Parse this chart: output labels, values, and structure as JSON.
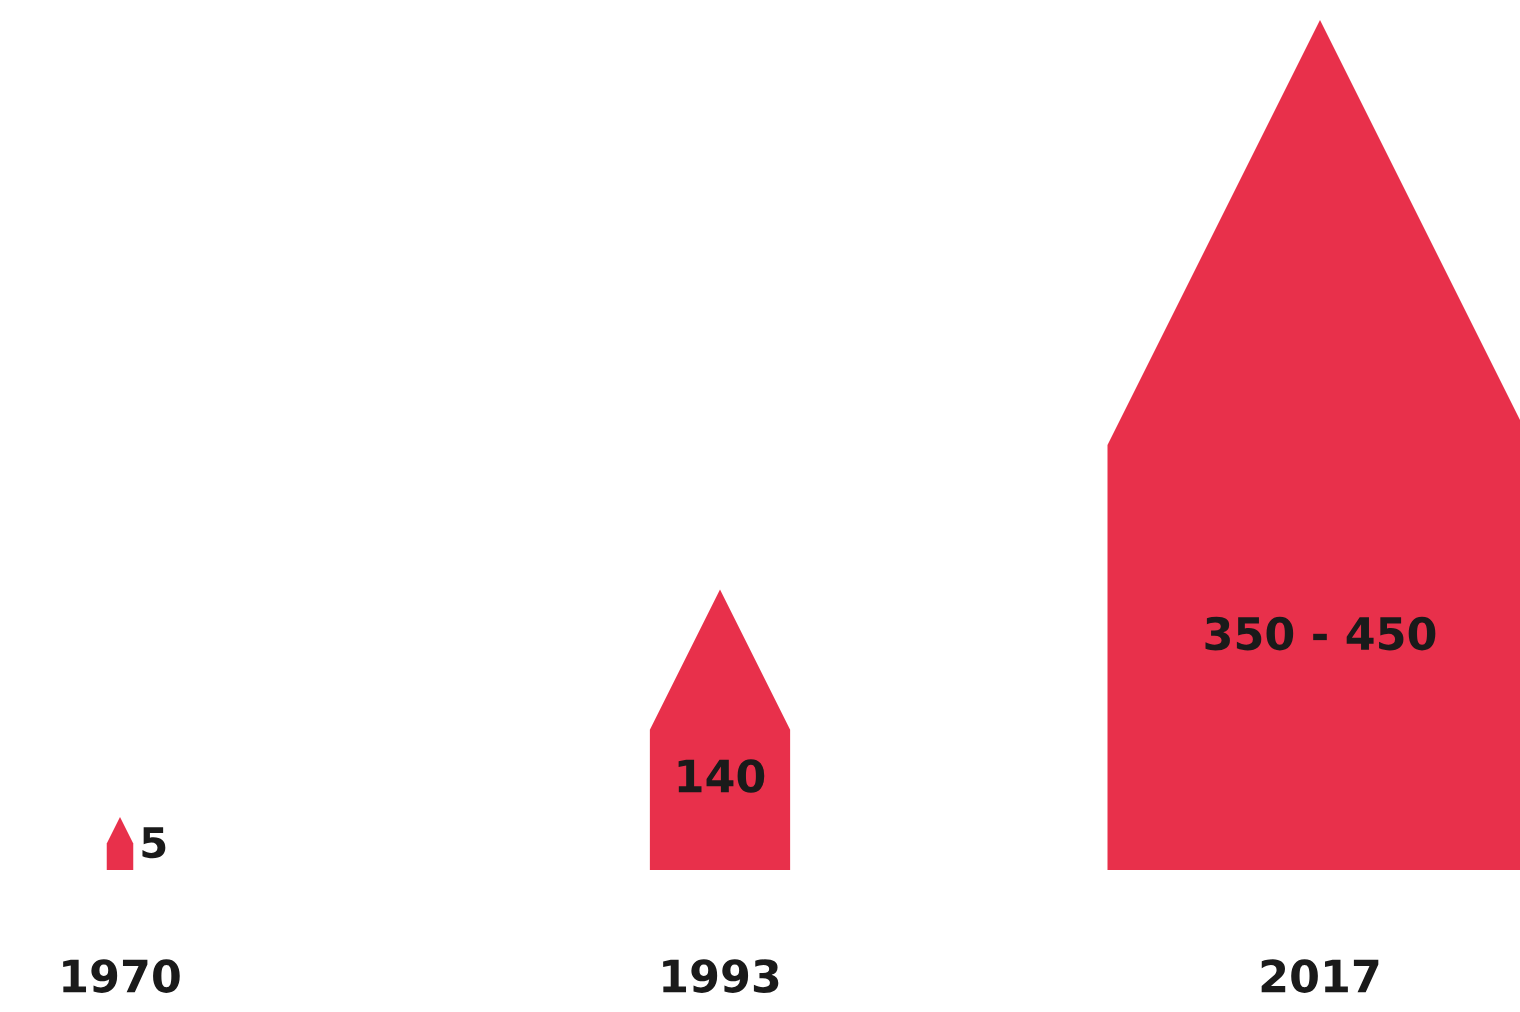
{
  "chart_data": {
    "type": "other",
    "categories": [
      "1970",
      "1993",
      "2017"
    ],
    "values": [
      5,
      140,
      null
    ],
    "value_labels": [
      "5",
      "140",
      "350 - 450"
    ],
    "color": "#e8304b"
  }
}
